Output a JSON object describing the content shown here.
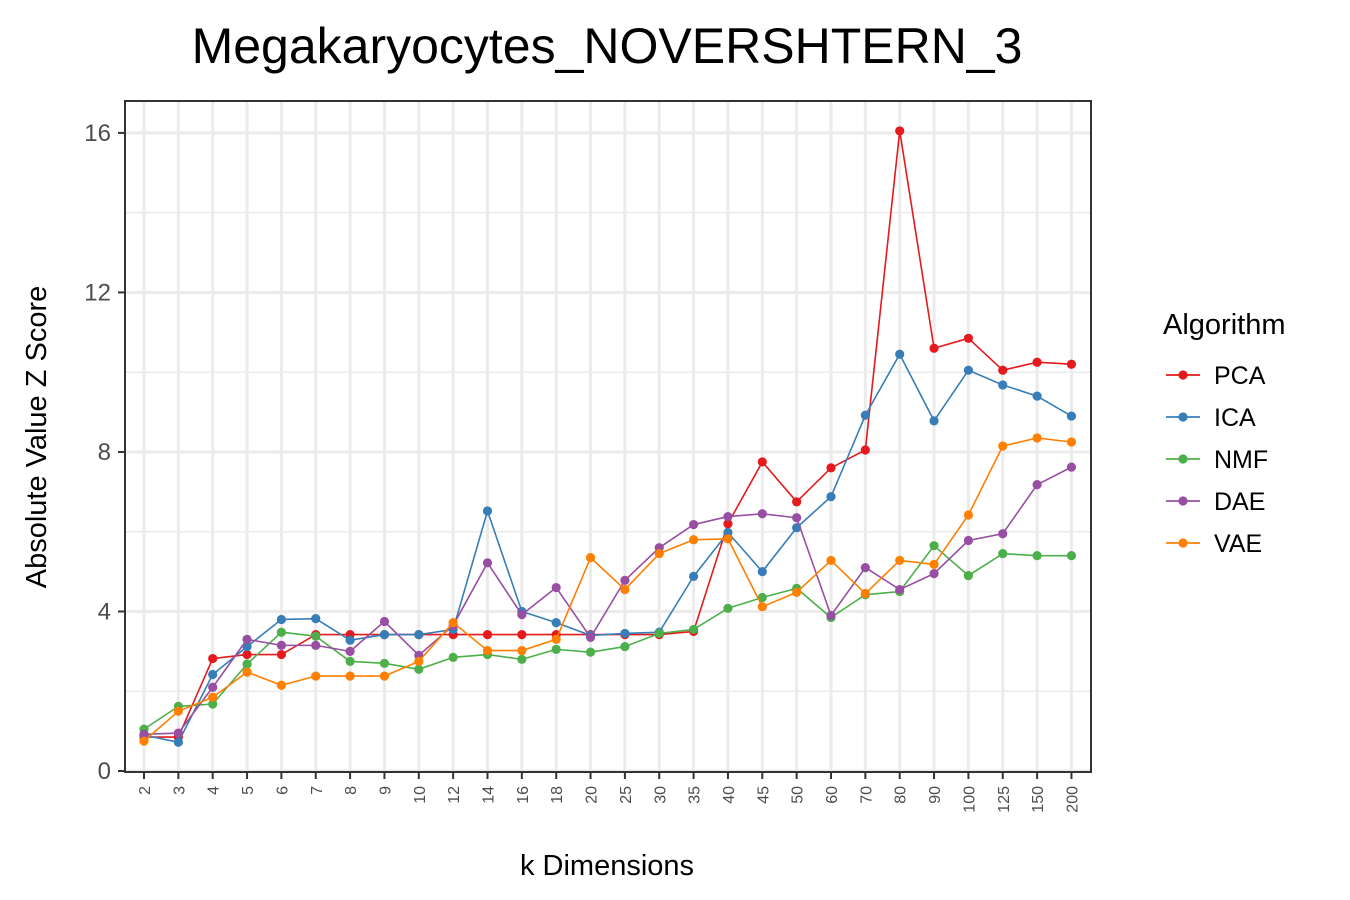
{
  "chart_data": {
    "type": "line",
    "title": "Megakaryocytes_NOVERSHTERN_3",
    "xlabel": "k Dimensions",
    "ylabel": "Absolute Value Z Score",
    "ylim": [
      0,
      16.8
    ],
    "y_ticks": [
      "0",
      "4",
      "8",
      "12",
      "16"
    ],
    "y_tick_values": [
      0,
      4,
      8,
      12,
      16
    ],
    "categories": [
      "2",
      "3",
      "4",
      "5",
      "6",
      "7",
      "8",
      "9",
      "10",
      "12",
      "14",
      "16",
      "18",
      "20",
      "25",
      "30",
      "35",
      "40",
      "45",
      "50",
      "60",
      "70",
      "80",
      "90",
      "100",
      "125",
      "150",
      "200"
    ],
    "grid": true,
    "legend": {
      "title": "Algorithm",
      "placement": "right"
    },
    "series": [
      {
        "name": "PCA",
        "color": "#e41a1c",
        "values": [
          0.85,
          0.85,
          2.82,
          2.92,
          2.92,
          3.42,
          3.42,
          3.42,
          3.42,
          3.42,
          3.42,
          3.42,
          3.42,
          3.42,
          3.42,
          3.42,
          3.5,
          6.2,
          7.75,
          6.75,
          7.6,
          8.05,
          16.05,
          10.6,
          10.85,
          10.05,
          10.25,
          10.2
        ]
      },
      {
        "name": "ICA",
        "color": "#377eb8",
        "values": [
          0.9,
          0.72,
          2.42,
          3.12,
          3.8,
          3.82,
          3.28,
          3.42,
          3.42,
          3.55,
          6.52,
          4.0,
          3.72,
          3.4,
          3.45,
          3.48,
          4.88,
          5.98,
          5.0,
          6.1,
          6.88,
          8.92,
          10.45,
          8.78,
          10.05,
          9.68,
          9.4,
          8.9
        ]
      },
      {
        "name": "NMF",
        "color": "#4daf4a",
        "values": [
          1.05,
          1.62,
          1.68,
          2.68,
          3.48,
          3.38,
          2.75,
          2.7,
          2.55,
          2.85,
          2.92,
          2.8,
          3.05,
          2.98,
          3.12,
          3.45,
          3.55,
          4.08,
          4.35,
          4.58,
          3.85,
          4.42,
          4.5,
          5.65,
          4.9,
          5.45,
          5.4,
          5.4
        ]
      },
      {
        "name": "DAE",
        "color": "#984ea3",
        "values": [
          0.92,
          0.95,
          2.1,
          3.3,
          3.15,
          3.15,
          3.0,
          3.75,
          2.9,
          3.65,
          5.22,
          3.92,
          4.6,
          3.35,
          4.78,
          5.6,
          6.18,
          6.38,
          6.45,
          6.35,
          3.9,
          5.1,
          4.55,
          4.95,
          5.78,
          5.95,
          7.18,
          7.62
        ]
      },
      {
        "name": "VAE",
        "color": "#ff7f00",
        "values": [
          0.75,
          1.5,
          1.85,
          2.48,
          2.15,
          2.38,
          2.38,
          2.38,
          2.75,
          3.72,
          3.02,
          3.02,
          3.3,
          5.35,
          4.55,
          5.45,
          5.8,
          5.82,
          4.12,
          4.48,
          5.28,
          4.45,
          5.28,
          5.18,
          6.42,
          8.15,
          8.35,
          8.25
        ]
      }
    ]
  }
}
